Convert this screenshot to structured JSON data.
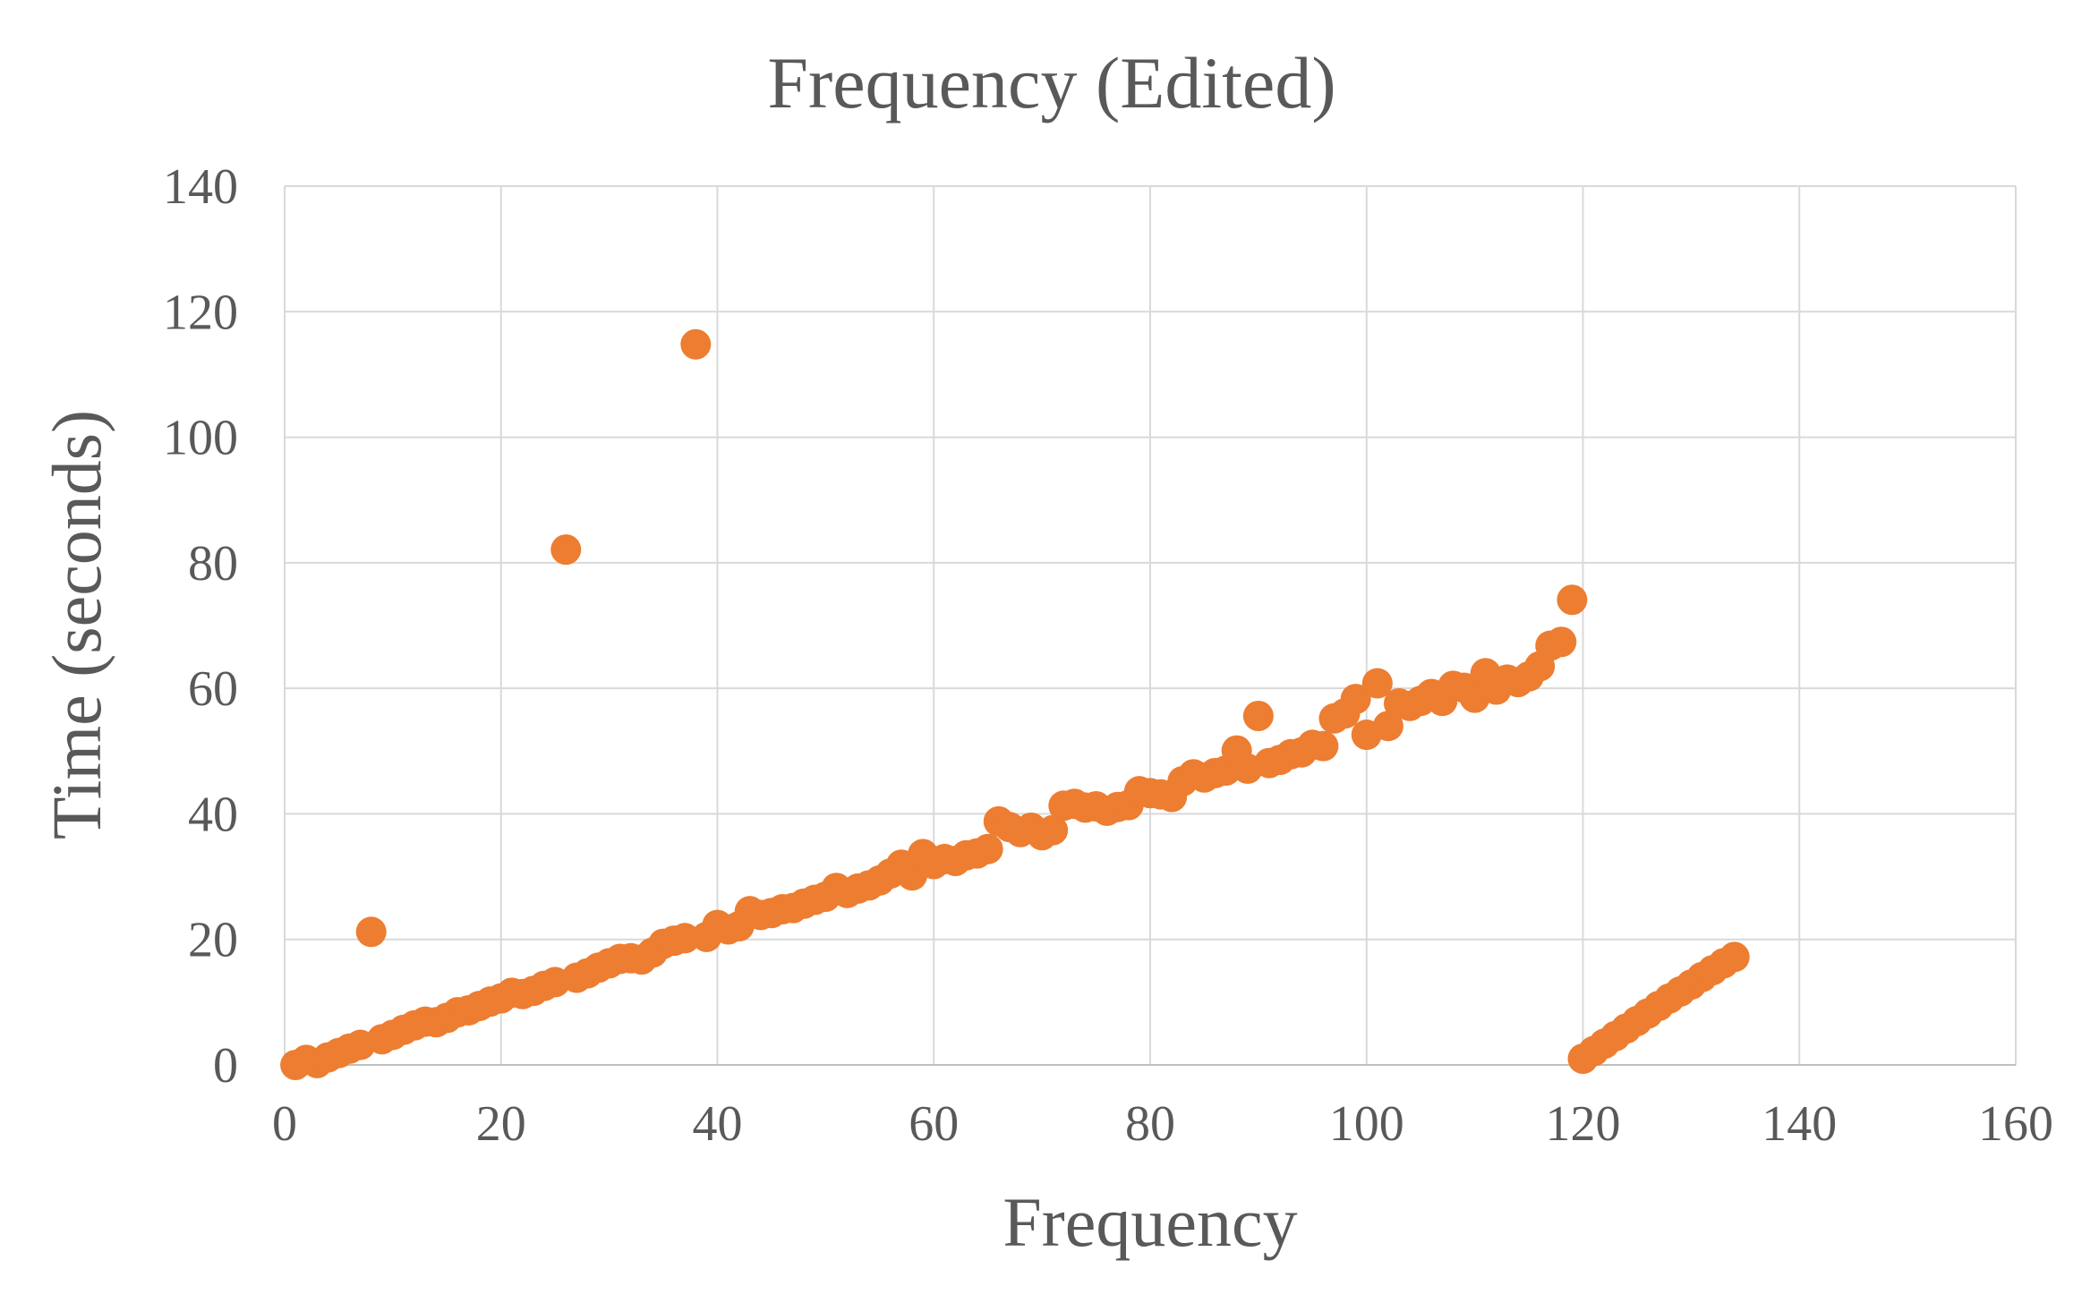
{
  "chart_data": {
    "type": "scatter",
    "title": "Frequency (Edited)",
    "xlabel": "Frequency",
    "ylabel": "Time (seconds)",
    "xlim": [
      0,
      160
    ],
    "ylim": [
      0,
      140
    ],
    "x_ticks": [
      "0",
      "20",
      "40",
      "60",
      "80",
      "100",
      "120",
      "140",
      "160"
    ],
    "y_ticks": [
      "0",
      "20",
      "40",
      "60",
      "80",
      "100",
      "120",
      "140"
    ],
    "grid": true,
    "legend": "none",
    "colors": {
      "marker": "#ED7D31",
      "text": "#595959",
      "grid": "#D9D9D9"
    },
    "series": [
      {
        "points": [
          [
            1,
            0
          ],
          [
            2,
            0.8
          ],
          [
            3,
            0.3
          ],
          [
            4,
            1.2
          ],
          [
            5,
            1.9
          ],
          [
            6,
            2.6
          ],
          [
            7,
            3.2
          ],
          [
            8,
            21.2
          ],
          [
            9,
            4.1
          ],
          [
            10,
            4.8
          ],
          [
            11,
            5.6
          ],
          [
            12,
            6.3
          ],
          [
            13,
            6.9
          ],
          [
            14,
            6.8
          ],
          [
            15,
            7.5
          ],
          [
            16,
            8.4
          ],
          [
            17,
            8.7
          ],
          [
            18,
            9.4
          ],
          [
            19,
            10.1
          ],
          [
            20,
            10.6
          ],
          [
            21,
            11.5
          ],
          [
            22,
            11.3
          ],
          [
            23,
            11.8
          ],
          [
            24,
            12.6
          ],
          [
            25,
            13.2
          ],
          [
            26,
            82.1
          ],
          [
            27,
            13.9
          ],
          [
            28,
            14.6
          ],
          [
            29,
            15.5
          ],
          [
            30,
            16.2
          ],
          [
            31,
            16.9
          ],
          [
            32,
            17.0
          ],
          [
            33,
            16.8
          ],
          [
            34,
            17.9
          ],
          [
            35,
            19.3
          ],
          [
            36,
            19.8
          ],
          [
            37,
            20.2
          ],
          [
            38,
            114.8
          ],
          [
            39,
            20.4
          ],
          [
            40,
            22.3
          ],
          [
            41,
            21.6
          ],
          [
            42,
            22.1
          ],
          [
            43,
            24.5
          ],
          [
            44,
            23.9
          ],
          [
            45,
            24.2
          ],
          [
            46,
            24.8
          ],
          [
            47,
            25.0
          ],
          [
            48,
            25.7
          ],
          [
            49,
            26.3
          ],
          [
            50,
            26.8
          ],
          [
            51,
            28.2
          ],
          [
            52,
            27.4
          ],
          [
            53,
            28.1
          ],
          [
            54,
            28.6
          ],
          [
            55,
            29.4
          ],
          [
            56,
            30.5
          ],
          [
            57,
            31.9
          ],
          [
            58,
            30.2
          ],
          [
            59,
            33.6
          ],
          [
            60,
            32.0
          ],
          [
            61,
            32.8
          ],
          [
            62,
            32.5
          ],
          [
            63,
            33.4
          ],
          [
            64,
            33.7
          ],
          [
            65,
            34.4
          ],
          [
            66,
            38.8
          ],
          [
            67,
            37.9
          ],
          [
            68,
            37.1
          ],
          [
            69,
            37.8
          ],
          [
            70,
            36.6
          ],
          [
            71,
            37.4
          ],
          [
            72,
            41.3
          ],
          [
            73,
            41.6
          ],
          [
            74,
            41.0
          ],
          [
            75,
            41.2
          ],
          [
            76,
            40.5
          ],
          [
            77,
            41.1
          ],
          [
            78,
            41.4
          ],
          [
            79,
            43.6
          ],
          [
            80,
            43.3
          ],
          [
            81,
            43.1
          ],
          [
            82,
            42.7
          ],
          [
            83,
            45.2
          ],
          [
            84,
            46.3
          ],
          [
            85,
            45.8
          ],
          [
            86,
            46.5
          ],
          [
            87,
            46.9
          ],
          [
            88,
            50.1
          ],
          [
            89,
            47.2
          ],
          [
            90,
            55.6
          ],
          [
            91,
            48.1
          ],
          [
            92,
            48.6
          ],
          [
            93,
            49.5
          ],
          [
            94,
            49.8
          ],
          [
            95,
            51.0
          ],
          [
            96,
            50.8
          ],
          [
            97,
            55.2
          ],
          [
            98,
            56.0
          ],
          [
            99,
            58.3
          ],
          [
            100,
            52.6
          ],
          [
            101,
            60.8
          ],
          [
            102,
            54.0
          ],
          [
            103,
            57.6
          ],
          [
            104,
            57.2
          ],
          [
            105,
            58.0
          ],
          [
            106,
            59.1
          ],
          [
            107,
            58.0
          ],
          [
            108,
            60.4
          ],
          [
            109,
            60.1
          ],
          [
            110,
            58.5
          ],
          [
            111,
            62.4
          ],
          [
            112,
            59.8
          ],
          [
            113,
            61.4
          ],
          [
            114,
            61.0
          ],
          [
            115,
            61.9
          ],
          [
            116,
            63.5
          ],
          [
            117,
            66.8
          ],
          [
            118,
            67.4
          ],
          [
            119,
            74.1
          ],
          [
            120,
            1.0
          ],
          [
            121,
            2.2
          ],
          [
            122,
            3.4
          ],
          [
            123,
            4.6
          ],
          [
            124,
            5.8
          ],
          [
            125,
            7.0
          ],
          [
            126,
            8.2
          ],
          [
            127,
            9.4
          ],
          [
            128,
            10.6
          ],
          [
            129,
            11.7
          ],
          [
            130,
            12.8
          ],
          [
            131,
            14.0
          ],
          [
            132,
            15.1
          ],
          [
            133,
            16.2
          ],
          [
            134,
            17.2
          ]
        ]
      }
    ]
  }
}
